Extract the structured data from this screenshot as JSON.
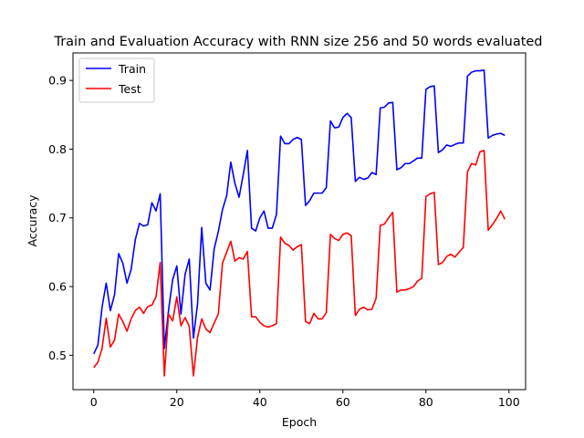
{
  "chart_data": {
    "type": "line",
    "title": "Train and Evaluation Accuracy with RNN size 256 and 50 words evaluated",
    "xlabel": "Epoch",
    "ylabel": "Accuracy",
    "xlim": [
      -5,
      104
    ],
    "ylim": [
      0.45,
      0.94
    ],
    "xticks": [
      0,
      20,
      40,
      60,
      80,
      100
    ],
    "yticks": [
      0.5,
      0.6,
      0.7,
      0.8,
      0.9
    ],
    "legend": {
      "position": "top-left",
      "labels": [
        "Train",
        "Test"
      ]
    },
    "x": [
      0,
      1,
      2,
      3,
      4,
      5,
      6,
      7,
      8,
      9,
      10,
      11,
      12,
      13,
      14,
      15,
      16,
      17,
      18,
      19,
      20,
      21,
      22,
      23,
      24,
      25,
      26,
      27,
      28,
      29,
      30,
      31,
      32,
      33,
      34,
      35,
      36,
      37,
      38,
      39,
      40,
      41,
      42,
      43,
      44,
      45,
      46,
      47,
      48,
      49,
      50,
      51,
      52,
      53,
      54,
      55,
      56,
      57,
      58,
      59,
      60,
      61,
      62,
      63,
      64,
      65,
      66,
      67,
      68,
      69,
      70,
      71,
      72,
      73,
      74,
      75,
      76,
      77,
      78,
      79,
      80,
      81,
      82,
      83,
      84,
      85,
      86,
      87,
      88,
      89,
      90,
      91,
      92,
      93,
      94,
      95,
      96,
      97,
      98,
      99
    ],
    "series": [
      {
        "name": "Train",
        "color": "#0000ff",
        "values": [
          0.502,
          0.515,
          0.57,
          0.605,
          0.565,
          0.588,
          0.648,
          0.634,
          0.605,
          0.625,
          0.668,
          0.692,
          0.688,
          0.69,
          0.722,
          0.71,
          0.735,
          0.51,
          0.565,
          0.61,
          0.63,
          0.56,
          0.618,
          0.64,
          0.525,
          0.575,
          0.686,
          0.605,
          0.595,
          0.655,
          0.68,
          0.712,
          0.732,
          0.781,
          0.75,
          0.73,
          0.763,
          0.798,
          0.685,
          0.681,
          0.7,
          0.71,
          0.685,
          0.685,
          0.705,
          0.819,
          0.808,
          0.808,
          0.814,
          0.817,
          0.814,
          0.718,
          0.725,
          0.736,
          0.736,
          0.736,
          0.744,
          0.841,
          0.831,
          0.832,
          0.846,
          0.852,
          0.846,
          0.753,
          0.759,
          0.756,
          0.758,
          0.766,
          0.763,
          0.86,
          0.861,
          0.867,
          0.868,
          0.77,
          0.773,
          0.779,
          0.779,
          0.783,
          0.787,
          0.787,
          0.887,
          0.891,
          0.892,
          0.795,
          0.799,
          0.806,
          0.804,
          0.807,
          0.809,
          0.809,
          0.906,
          0.912,
          0.914,
          0.914,
          0.915,
          0.816,
          0.82,
          0.822,
          0.823,
          0.82
        ]
      },
      {
        "name": "Test",
        "color": "#ff0000",
        "values": [
          0.482,
          0.49,
          0.51,
          0.554,
          0.512,
          0.522,
          0.56,
          0.549,
          0.535,
          0.553,
          0.565,
          0.57,
          0.561,
          0.571,
          0.573,
          0.585,
          0.635,
          0.47,
          0.56,
          0.55,
          0.585,
          0.543,
          0.555,
          0.542,
          0.47,
          0.526,
          0.553,
          0.538,
          0.533,
          0.547,
          0.56,
          0.634,
          0.65,
          0.666,
          0.637,
          0.642,
          0.64,
          0.651,
          0.556,
          0.556,
          0.548,
          0.543,
          0.541,
          0.543,
          0.546,
          0.672,
          0.663,
          0.66,
          0.653,
          0.658,
          0.661,
          0.549,
          0.546,
          0.561,
          0.553,
          0.553,
          0.562,
          0.676,
          0.67,
          0.667,
          0.676,
          0.678,
          0.674,
          0.558,
          0.567,
          0.57,
          0.566,
          0.567,
          0.583,
          0.689,
          0.691,
          0.7,
          0.708,
          0.592,
          0.595,
          0.595,
          0.597,
          0.6,
          0.608,
          0.612,
          0.731,
          0.735,
          0.737,
          0.632,
          0.635,
          0.644,
          0.647,
          0.643,
          0.65,
          0.657,
          0.767,
          0.779,
          0.777,
          0.796,
          0.798,
          0.682,
          0.69,
          0.699,
          0.71,
          0.698
        ]
      }
    ]
  }
}
